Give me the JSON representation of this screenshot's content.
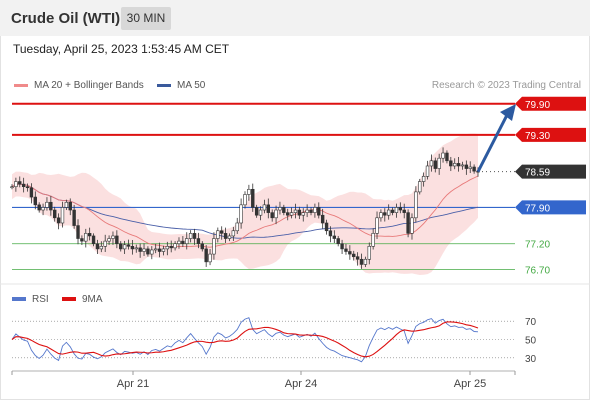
{
  "header": {
    "title": "Crude Oil (WTI)",
    "interval": "30 MIN"
  },
  "timestamp": "Tuesday, April 25, 2023 1:53:45 AM CET",
  "credit": "Research © 2023 Trading Central",
  "legend": [
    {
      "label": "MA 20 + Bollinger Bands",
      "color": "#f08a8a"
    },
    {
      "label": "MA 50",
      "color": "#3a5a9c"
    }
  ],
  "colors": {
    "candle": "#333333",
    "resistance": "#dd1111",
    "pivot": "#3366cc",
    "support": "#44aa44",
    "band": "#fadada",
    "ma20": "#e87a7a",
    "ma50": "#4a5fa8",
    "arrow": "#2c5aa0",
    "rsi": "#5577cc",
    "rsi_ma": "#dd1111"
  },
  "chart_data": [
    {
      "type": "candlestick",
      "x_ticks": [
        "Apr 21",
        "Apr 24",
        "Apr 25"
      ],
      "ylim": [
        76.5,
        80.05
      ],
      "levels": [
        {
          "value": 79.9,
          "label": "79.90",
          "kind": "resistance"
        },
        {
          "value": 79.3,
          "label": "79.30",
          "kind": "resistance"
        },
        {
          "value": 78.59,
          "label": "78.59",
          "kind": "last"
        },
        {
          "value": 77.9,
          "label": "77.90",
          "kind": "pivot"
        },
        {
          "value": 77.2,
          "label": "77.20",
          "kind": "support"
        },
        {
          "value": 76.7,
          "label": "76.70",
          "kind": "support"
        }
      ],
      "close": [
        78.3,
        78.4,
        78.35,
        78.3,
        78.28,
        78.1,
        77.95,
        77.85,
        77.9,
        78.0,
        77.85,
        77.7,
        77.6,
        77.9,
        78.0,
        77.85,
        77.55,
        77.3,
        77.25,
        77.4,
        77.35,
        77.2,
        77.1,
        77.15,
        77.25,
        77.3,
        77.35,
        77.2,
        77.1,
        77.18,
        77.15,
        77.1,
        77.12,
        77.05,
        77.1,
        77.0,
        77.08,
        77.1,
        77.05,
        77.1,
        77.15,
        77.12,
        77.2,
        77.25,
        77.2,
        77.3,
        77.4,
        77.3,
        77.2,
        77.1,
        76.85,
        77.0,
        77.3,
        77.45,
        77.4,
        77.3,
        77.35,
        77.45,
        77.6,
        77.95,
        78.15,
        78.25,
        77.9,
        77.75,
        77.85,
        77.95,
        77.8,
        77.7,
        77.85,
        77.9,
        77.8,
        77.75,
        77.8,
        77.85,
        77.75,
        77.8,
        77.85,
        77.8,
        77.9,
        77.75,
        77.6,
        77.45,
        77.35,
        77.3,
        77.2,
        77.1,
        77.05,
        77.0,
        76.95,
        76.9,
        76.8,
        76.9,
        77.15,
        77.4,
        77.7,
        77.8,
        77.75,
        77.85,
        77.8,
        77.9,
        77.85,
        77.8,
        77.4,
        77.7,
        78.2,
        78.4,
        78.5,
        78.7,
        78.8,
        78.65,
        78.85,
        78.95,
        78.8,
        78.7,
        78.75,
        78.7,
        78.72,
        78.65,
        78.68,
        78.6,
        78.59
      ]
    },
    {
      "type": "line",
      "title": "RSI",
      "series": [
        {
          "name": "RSI"
        },
        {
          "name": "9MA"
        }
      ],
      "ylim": [
        20,
        80
      ],
      "y_ticks": [
        70,
        50,
        30
      ]
    }
  ]
}
